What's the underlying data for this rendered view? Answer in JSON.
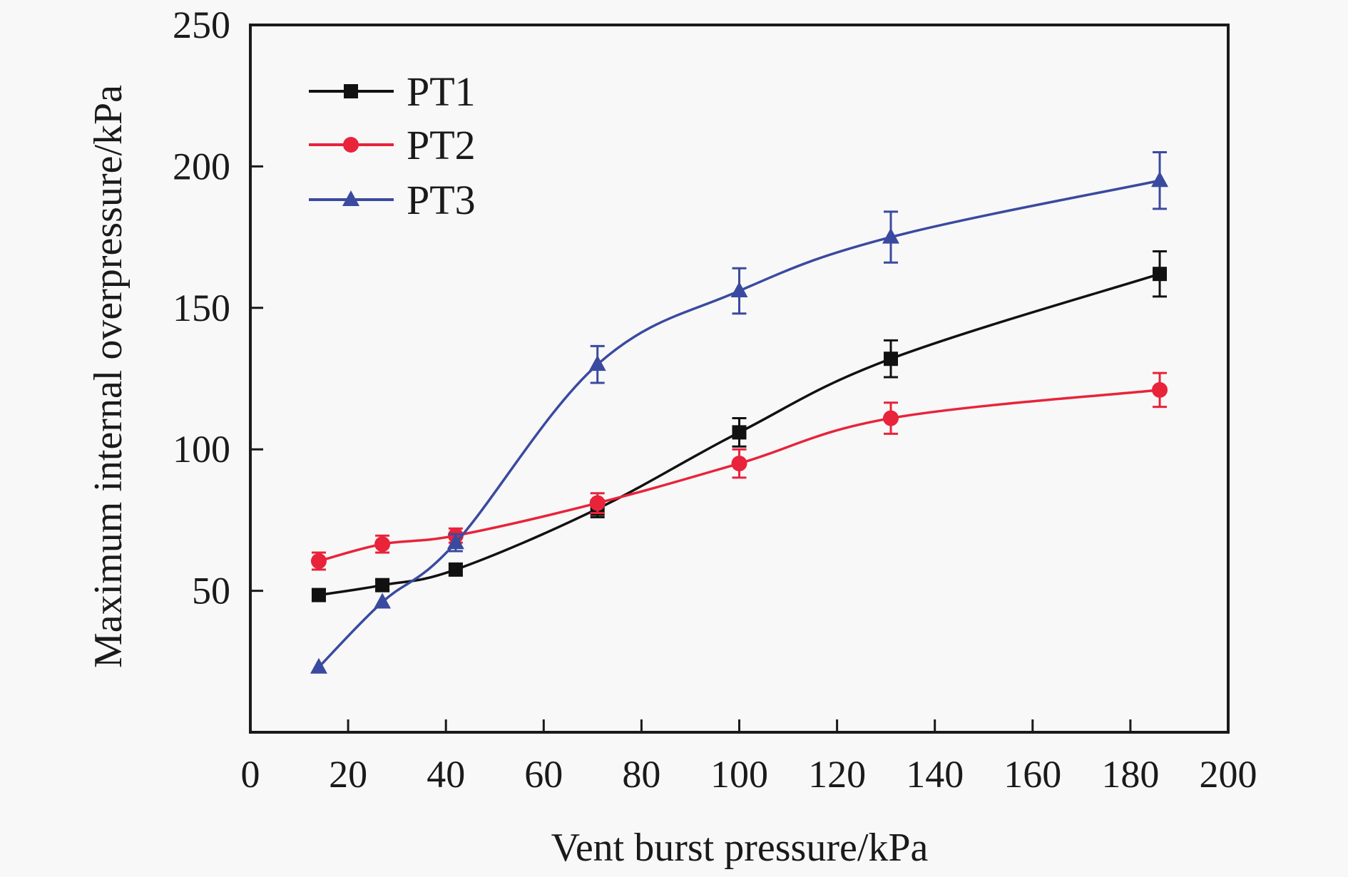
{
  "chart_data": {
    "type": "line",
    "title": "",
    "xlabel": "Vent burst pressure/kPa",
    "ylabel": "Maximum internal overpressure/kPa",
    "xlim": [
      0,
      200
    ],
    "ylim": [
      0,
      250
    ],
    "x_ticks": [
      0,
      20,
      40,
      60,
      80,
      100,
      120,
      140,
      160,
      180,
      200
    ],
    "y_ticks": [
      50,
      100,
      150,
      200,
      250
    ],
    "x_tick_labels": [
      "0",
      "20",
      "40",
      "60",
      "80",
      "100",
      "120",
      "140",
      "160",
      "180",
      "200"
    ],
    "y_tick_labels": [
      "50",
      "100",
      "150",
      "200",
      "250"
    ],
    "grid": false,
    "legend_position": "top-left",
    "x": [
      14,
      27,
      42,
      71,
      100,
      131,
      186
    ],
    "series": [
      {
        "name": "PT1",
        "color": "#111111",
        "marker": "square",
        "values": [
          48.5,
          52,
          57.5,
          79,
          106,
          132,
          162
        ],
        "errors": [
          2,
          2,
          2,
          3,
          5,
          6.5,
          8
        ]
      },
      {
        "name": "PT2",
        "color": "#e8233a",
        "marker": "circle",
        "values": [
          60.5,
          66.5,
          69.5,
          81,
          95,
          111,
          121
        ],
        "errors": [
          3,
          3,
          2.5,
          3.5,
          5,
          5.5,
          6
        ]
      },
      {
        "name": "PT3",
        "color": "#3a4aa0",
        "marker": "triangle",
        "values": [
          23,
          46,
          67,
          130,
          156,
          175,
          195
        ],
        "errors": [
          0,
          0,
          3,
          6.5,
          8,
          9,
          10
        ]
      }
    ]
  }
}
